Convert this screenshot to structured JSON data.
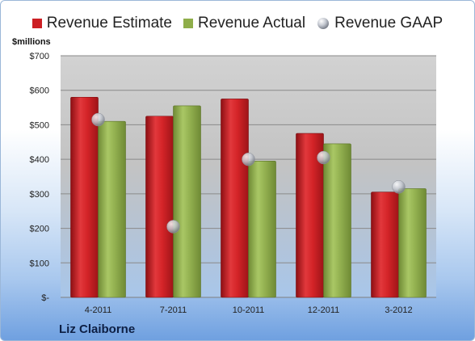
{
  "company": "Liz Claiborne",
  "chart_data": {
    "type": "bar",
    "ylabel": "$millions",
    "ylim": [
      0,
      700
    ],
    "yticks": [
      0,
      100,
      200,
      300,
      400,
      500,
      600,
      700
    ],
    "ytick_labels": [
      "$-",
      "$100",
      "$200",
      "$300",
      "$400",
      "$500",
      "$600",
      "$700"
    ],
    "categories": [
      "4-2011",
      "7-2011",
      "10-2011",
      "12-2011",
      "3-2012"
    ],
    "series": [
      {
        "name": "Revenue Estimate",
        "kind": "bar",
        "color": "#cc1f24",
        "values": [
          580,
          525,
          575,
          475,
          305
        ]
      },
      {
        "name": "Revenue Actual",
        "kind": "bar",
        "color": "#8fae4a",
        "values": [
          510,
          555,
          395,
          445,
          315
        ]
      },
      {
        "name": "Revenue GAAP",
        "kind": "marker",
        "color": "#b8bcc6",
        "values": [
          515,
          205,
          400,
          405,
          320
        ]
      }
    ],
    "legend_position": "top",
    "grid": true
  }
}
